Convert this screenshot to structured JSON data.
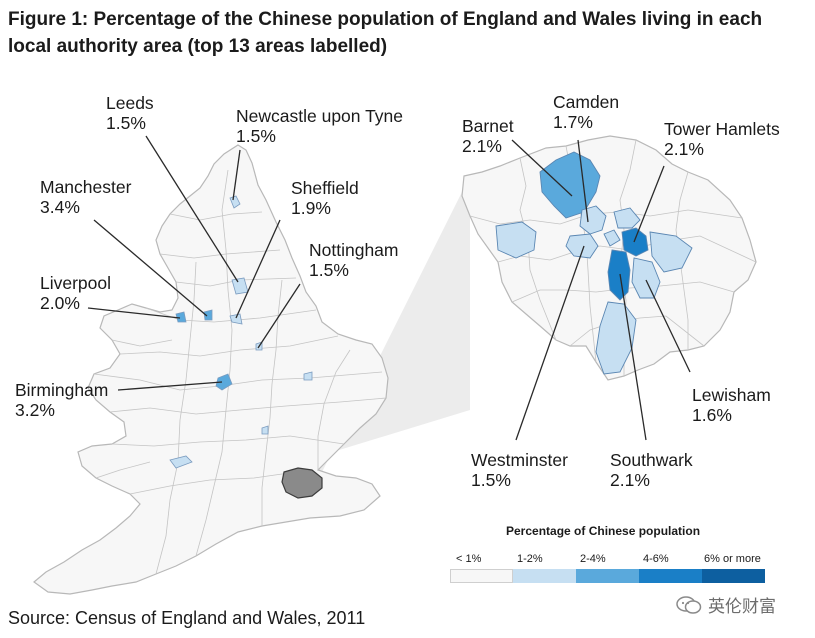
{
  "title": "Figure 1: Percentage of the Chinese population of England and Wales living in each local authority area (top 13 areas labelled)",
  "labels": [
    {
      "name": "Leeds",
      "pct": "1.5%"
    },
    {
      "name": "Newcastle upon Tyne",
      "pct": "1.5%"
    },
    {
      "name": "Manchester",
      "pct": "3.4%"
    },
    {
      "name": "Sheffield",
      "pct": "1.9%"
    },
    {
      "name": "Nottingham",
      "pct": "1.5%"
    },
    {
      "name": "Liverpool",
      "pct": "2.0%"
    },
    {
      "name": "Birmingham",
      "pct": "3.2%"
    },
    {
      "name": "Barnet",
      "pct": "2.1%"
    },
    {
      "name": "Camden",
      "pct": "1.7%"
    },
    {
      "name": "Tower Hamlets",
      "pct": "2.1%"
    },
    {
      "name": "Lewisham",
      "pct": "1.6%"
    },
    {
      "name": "Westminster",
      "pct": "1.5%"
    },
    {
      "name": "Southwark",
      "pct": "2.1%"
    }
  ],
  "legend": {
    "title": "Percentage of Chinese population",
    "items": [
      {
        "label": "< 1%",
        "color": "#f7f7f7"
      },
      {
        "label": "1-2%",
        "color": "#c6dff2"
      },
      {
        "label": "2-4%",
        "color": "#5aa9dc"
      },
      {
        "label": "4-6%",
        "color": "#1a7fc7"
      },
      {
        "label": "6% or more",
        "color": "#0d5fa0"
      }
    ]
  },
  "source": "Source: Census of England and Wales, 2011",
  "watermark": "英伦财富"
}
